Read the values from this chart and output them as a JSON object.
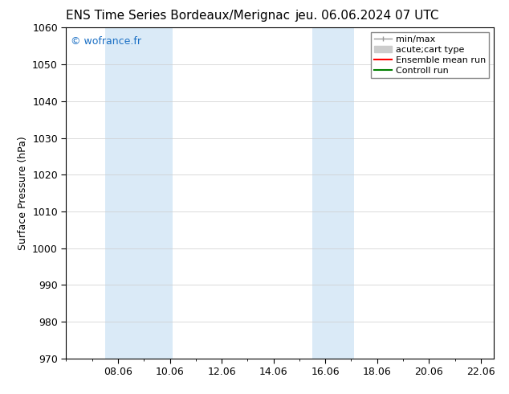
{
  "title_left": "ENS Time Series Bordeaux/Merignac",
  "title_right": "jeu. 06.06.2024 07 UTC",
  "ylabel": "Surface Pressure (hPa)",
  "ylim": [
    970,
    1060
  ],
  "yticks": [
    970,
    980,
    990,
    1000,
    1010,
    1020,
    1030,
    1040,
    1050,
    1060
  ],
  "xlim_start": 6.0,
  "xlim_end": 22.5,
  "xtick_labels": [
    "08.06",
    "10.06",
    "12.06",
    "14.06",
    "16.06",
    "18.06",
    "20.06",
    "22.06"
  ],
  "xtick_positions": [
    8.0,
    10.0,
    12.0,
    14.0,
    16.0,
    18.0,
    20.0,
    22.0
  ],
  "shaded_bands": [
    {
      "xmin": 7.5,
      "xmax": 9.5
    },
    {
      "xmin": 9.5,
      "xmax": 10.1
    },
    {
      "xmin": 15.5,
      "xmax": 16.5
    },
    {
      "xmin": 16.5,
      "xmax": 17.1
    }
  ],
  "shaded_color": "#daeaf7",
  "watermark": "© wofrance.fr",
  "watermark_color": "#1a6fc4",
  "background_color": "#ffffff",
  "legend_minmax_color": "#999999",
  "legend_cart_color": "#cccccc",
  "legend_ensemble_color": "#ff0000",
  "legend_control_color": "#008000",
  "title_fontsize": 11,
  "axis_label_fontsize": 9,
  "tick_fontsize": 9,
  "watermark_fontsize": 9,
  "legend_fontsize": 8
}
